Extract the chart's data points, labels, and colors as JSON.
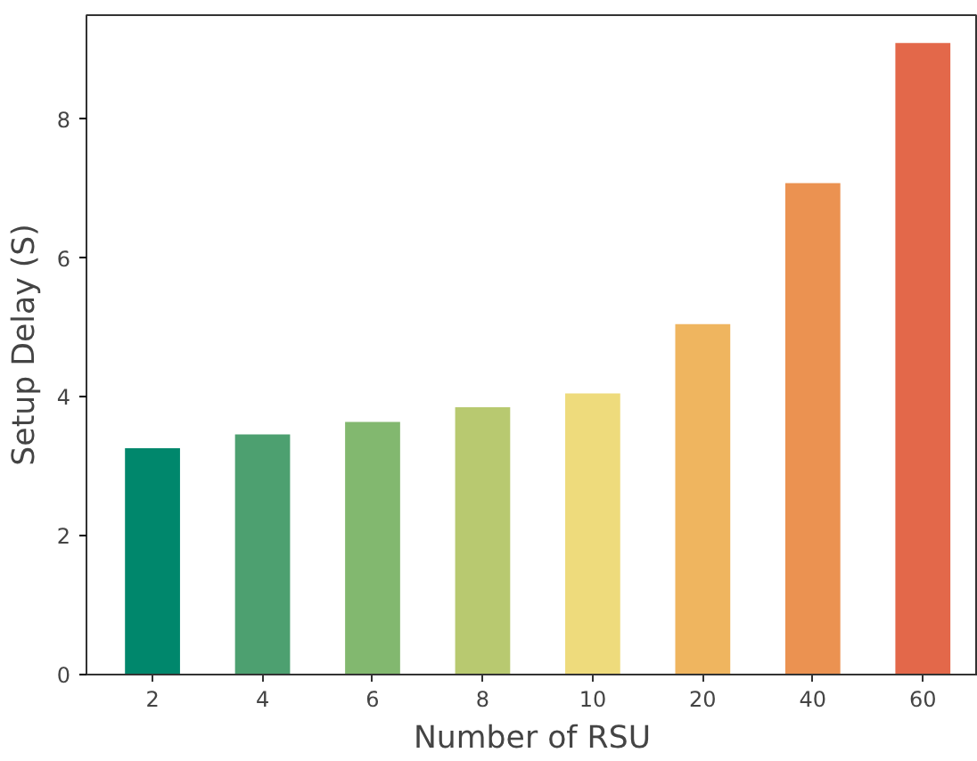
{
  "chart_data": {
    "type": "bar",
    "xlabel": "Number of RSU",
    "ylabel": "Setup Delay (S)",
    "categories": [
      "2",
      "4",
      "6",
      "8",
      "10",
      "20",
      "40",
      "60"
    ],
    "values": [
      3.26,
      3.46,
      3.64,
      3.85,
      4.05,
      5.05,
      7.08,
      9.1
    ],
    "colors": [
      "#00876c",
      "#4da070",
      "#82b86f",
      "#b8c970",
      "#eedb7c",
      "#efb55f",
      "#eb9251",
      "#e3684a"
    ],
    "ylim": [
      0,
      9.5
    ],
    "yticks": [
      0,
      2,
      4,
      6,
      8
    ],
    "grid": false
  }
}
